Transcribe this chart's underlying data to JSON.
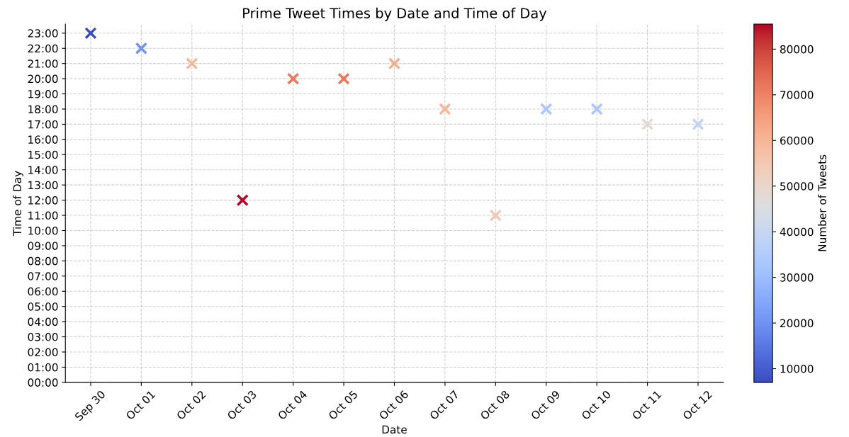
{
  "chart_data": {
    "type": "scatter",
    "title": "Prime Tweet Times by Date and Time of Day",
    "xlabel": "Date",
    "ylabel": "Time of Day",
    "clabel": "Number of Tweets",
    "categories": [
      "Sep 30",
      "Oct 01",
      "Oct 02",
      "Oct 03",
      "Oct 04",
      "Oct 05",
      "Oct 06",
      "Oct 07",
      "Oct 08",
      "Oct 09",
      "Oct 10",
      "Oct 11",
      "Oct 12"
    ],
    "values": [
      23,
      22,
      21,
      12,
      20,
      20,
      21,
      18,
      11,
      18,
      18,
      17,
      17
    ],
    "cvalues": [
      7000,
      20000,
      60000,
      85500,
      72000,
      72000,
      62000,
      60000,
      55000,
      33000,
      33000,
      48000,
      38000
    ],
    "clim": [
      7000,
      85500
    ],
    "cticks": [
      10000,
      20000,
      30000,
      40000,
      50000,
      60000,
      70000,
      80000
    ],
    "ylim": [
      0,
      23.6
    ],
    "yticks": [
      {
        "value": 0,
        "label": "00:00"
      },
      {
        "value": 1,
        "label": "01:00"
      },
      {
        "value": 2,
        "label": "02:00"
      },
      {
        "value": 3,
        "label": "03:00"
      },
      {
        "value": 4,
        "label": "04:00"
      },
      {
        "value": 5,
        "label": "05:00"
      },
      {
        "value": 6,
        "label": "06:00"
      },
      {
        "value": 7,
        "label": "07:00"
      },
      {
        "value": 8,
        "label": "08:00"
      },
      {
        "value": 9,
        "label": "09:00"
      },
      {
        "value": 10,
        "label": "10:00"
      },
      {
        "value": 11,
        "label": "11:00"
      },
      {
        "value": 12,
        "label": "12:00"
      },
      {
        "value": 13,
        "label": "13:00"
      },
      {
        "value": 14,
        "label": "14:00"
      },
      {
        "value": 15,
        "label": "15:00"
      },
      {
        "value": 16,
        "label": "16:00"
      },
      {
        "value": 17,
        "label": "17:00"
      },
      {
        "value": 18,
        "label": "18:00"
      },
      {
        "value": 19,
        "label": "19:00"
      },
      {
        "value": 20,
        "label": "20:00"
      },
      {
        "value": 21,
        "label": "21:00"
      },
      {
        "value": 22,
        "label": "22:00"
      },
      {
        "value": 23,
        "label": "23:00"
      }
    ],
    "grid": true,
    "marker": "cross"
  }
}
